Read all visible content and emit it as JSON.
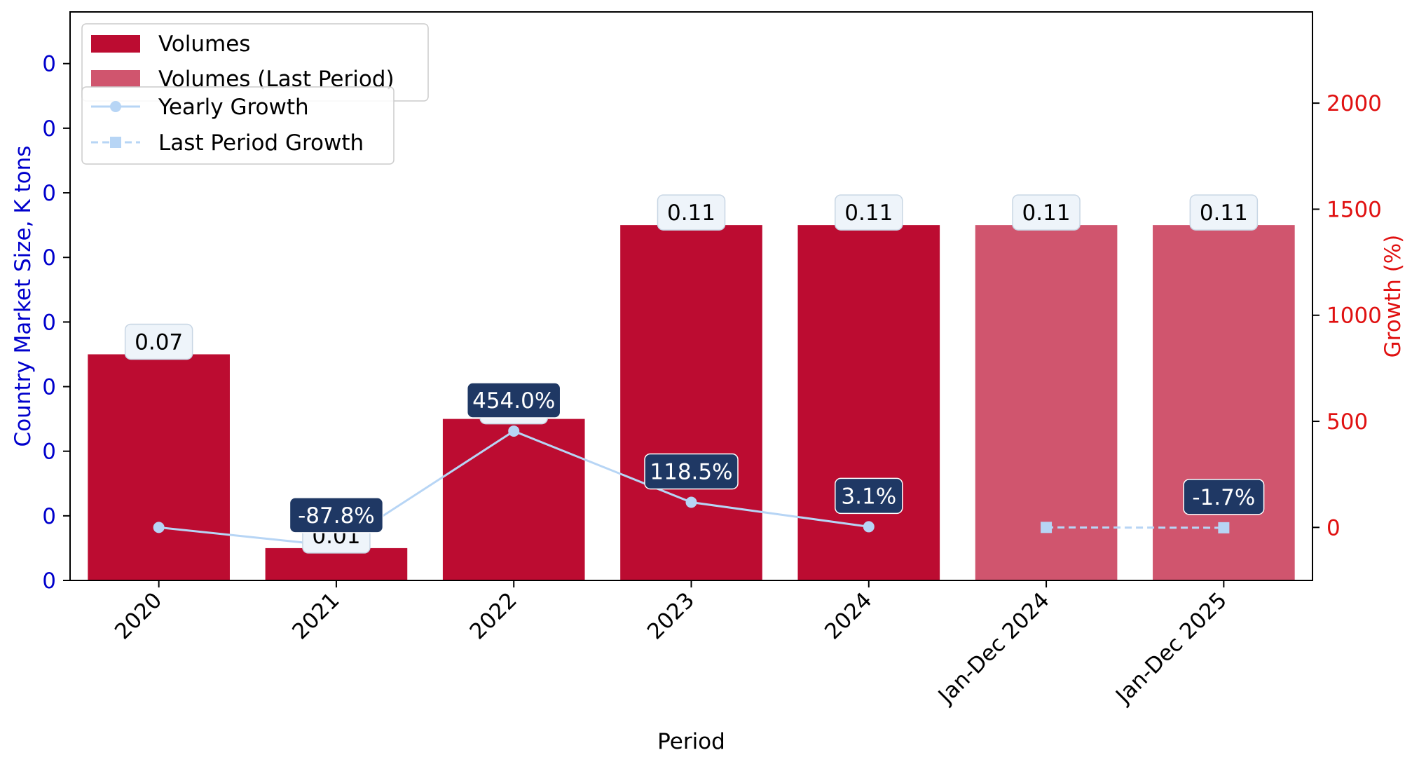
{
  "chart_data": {
    "type": "bar",
    "categories": [
      "2020",
      "2021",
      "2022",
      "2023",
      "2024",
      "Jan-Dec 2024",
      "Jan-Dec 2025"
    ],
    "xlabel": "Period",
    "ylabel_left": "Country Market Size, K tons",
    "ylabel_right": "Growth (%)",
    "ylim_left": [
      0,
      0.176
    ],
    "ylim_right": [
      -250,
      2430
    ],
    "left_tick_labels": [
      "0",
      "0",
      "0",
      "0",
      "0",
      "0",
      "0",
      "0",
      "0"
    ],
    "left_tick_values": [
      0,
      0.02,
      0.04,
      0.06,
      0.08,
      0.1,
      0.12,
      0.14,
      0.16
    ],
    "right_ticks": [
      0,
      500,
      1000,
      1500,
      2000
    ],
    "bars": {
      "name": "Volumes",
      "values": [
        0.07,
        0.01,
        0.05,
        0.11,
        0.11,
        null,
        null
      ],
      "labels": [
        "0.07",
        "0.01",
        "0.05",
        "0.11",
        "0.11",
        "",
        ""
      ],
      "color": "#BC0C31"
    },
    "bars_last_period": {
      "name": "Volumes (Last Period)",
      "values": [
        null,
        null,
        null,
        null,
        null,
        0.11,
        0.11
      ],
      "labels": [
        "",
        "",
        "",
        "",
        "",
        "0.11",
        "0.11"
      ],
      "color": "#D0556E"
    },
    "yearly_growth": {
      "name": "Yearly Growth",
      "values": [
        0,
        -87.8,
        454.0,
        118.5,
        3.1,
        null,
        null
      ],
      "labels": [
        "",
        "-87.8%",
        "454.0%",
        "118.5%",
        "3.1%",
        "",
        ""
      ],
      "color": "#B7D5F5"
    },
    "last_period_growth": {
      "name": "Last Period Growth",
      "values": [
        null,
        null,
        null,
        null,
        null,
        0,
        -1.7
      ],
      "labels": [
        "",
        "",
        "",
        "",
        "",
        "",
        "-1.7%"
      ],
      "color": "#B7D5F5"
    },
    "legend_placement": "top-left",
    "grid": false,
    "colors": {
      "left_axis": "#0000CC",
      "right_axis": "#E01010",
      "growth_label_bg": "#1F3864",
      "value_label_bg": "#EEF4FA"
    }
  }
}
